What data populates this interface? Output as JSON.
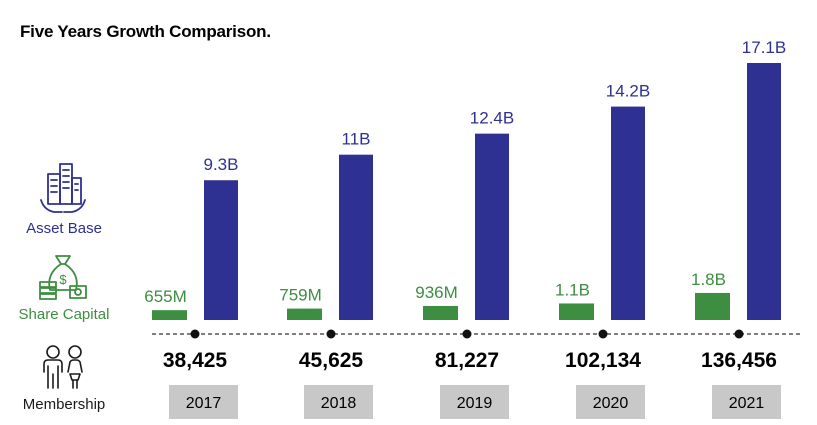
{
  "title": "Five Years Growth Comparison.",
  "legend": {
    "asset_base": "Asset Base",
    "share_capital": "Share Capital",
    "membership": "Membership"
  },
  "colors": {
    "asset_base": "#2e3192",
    "share_capital": "#3e8e41",
    "membership_text": "#000000",
    "year_box": "#c8c8c8"
  },
  "icons": {
    "asset_base": "buildings-in-hands-icon",
    "share_capital": "money-bag-and-cash-icon",
    "membership": "people-icon"
  },
  "chart_data": {
    "type": "bar",
    "title": "Five Years Growth Comparison.",
    "categories": [
      "2017",
      "2018",
      "2019",
      "2020",
      "2021"
    ],
    "series": [
      {
        "name": "Share Capital",
        "values": [
          0.655,
          0.759,
          0.936,
          1.1,
          1.8
        ],
        "labels": [
          "655M",
          "759M",
          "936M",
          "1.1B",
          "1.8B"
        ]
      },
      {
        "name": "Asset Base",
        "values": [
          9.3,
          11,
          12.4,
          14.2,
          17.1
        ],
        "labels": [
          "9.3B",
          "11B",
          "12.4B",
          "14.2B",
          "17.1B"
        ]
      }
    ],
    "membership": {
      "name": "Membership",
      "values": [
        38425,
        45625,
        81227,
        102134,
        136456
      ],
      "labels": [
        "38,425",
        "45,625",
        "81,227",
        "102,134",
        "136,456"
      ]
    },
    "value_unit": "B",
    "ylim": [
      0,
      17.1
    ],
    "grid": false,
    "xlabel": "",
    "ylabel": ""
  }
}
